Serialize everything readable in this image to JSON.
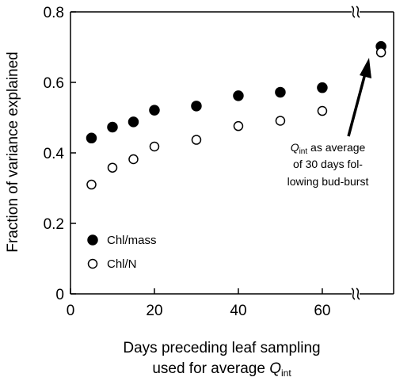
{
  "chart_data": {
    "type": "scatter",
    "ylabel": "Fraction of variance explained",
    "xlabel_line1": "Days preceding leaf sampling",
    "xlabel_line2_prefix": "used for average",
    "xlabel_line2_symbol": "Q",
    "xlabel_line2_subscript": "int",
    "xlim": [
      0,
      77
    ],
    "ylim": [
      0,
      0.8
    ],
    "x_ticks": [
      0,
      20,
      40,
      60
    ],
    "y_ticks": [
      0,
      0.2,
      0.4,
      0.6,
      0.8
    ],
    "x_tick_labels": [
      "0",
      "20",
      "40",
      "60"
    ],
    "y_tick_labels": [
      "0",
      "0.2",
      "0.4",
      "0.6",
      "0.8"
    ],
    "axis_break": true,
    "series": [
      {
        "name": "Chl/mass",
        "marker": "filled-circle",
        "x": [
          5,
          10,
          15,
          20,
          30,
          40,
          50,
          60,
          74
        ],
        "y": [
          0.442,
          0.473,
          0.488,
          0.521,
          0.533,
          0.562,
          0.572,
          0.585,
          0.702
        ]
      },
      {
        "name": "Chl/N",
        "marker": "open-circle",
        "x": [
          5,
          10,
          15,
          20,
          30,
          40,
          50,
          60,
          74
        ],
        "y": [
          0.31,
          0.358,
          0.382,
          0.418,
          0.437,
          0.476,
          0.491,
          0.519,
          0.685
        ]
      }
    ],
    "legend_position": "bottom-left",
    "annotation": {
      "symbol": "Q",
      "subscript": "int",
      "line1_suffix": "as average",
      "line2": "of 30 days fol-",
      "line3": "lowing bud-burst",
      "points_to_x": 74
    }
  }
}
